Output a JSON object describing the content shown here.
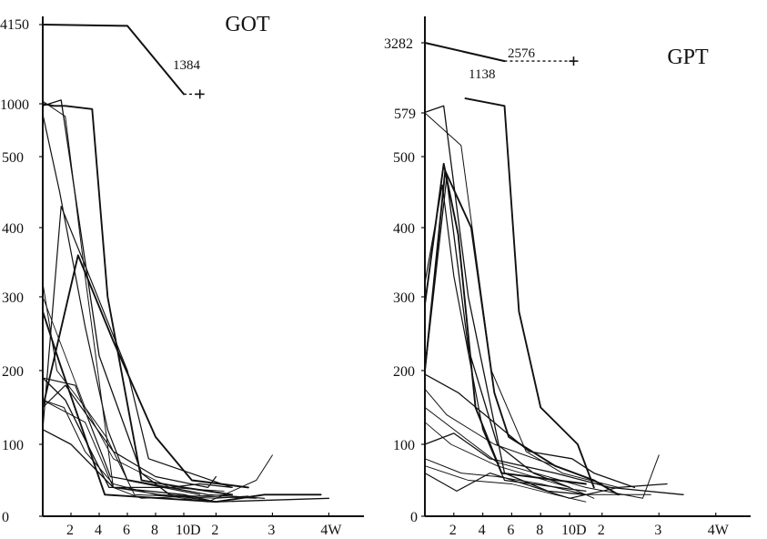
{
  "chart_data": [
    {
      "type": "line",
      "title": "GOT",
      "y_tick_labels": [
        "0",
        "100",
        "200",
        "300",
        "400",
        "500",
        "1000",
        "4150"
      ],
      "x_tick_labels": [
        "2",
        "4",
        "6",
        "8",
        "10D",
        "2",
        "3",
        "4W"
      ],
      "annotations": [
        "1384"
      ],
      "axis_note": "piecewise x-axis: days 0-10 then weeks 1-4; broken y-axis above 500",
      "series": [
        {
          "x": [
            0,
            6,
            10
          ],
          "y": [
            4150,
            4100,
            1384
          ],
          "width": 2.0
        },
        {
          "x": [
            0,
            0.8,
            1.6,
            3.5,
            4.6,
            7,
            10,
            16
          ],
          "y": [
            1000,
            980,
            980,
            950,
            300,
            50,
            40,
            30
          ],
          "width": 1.9
        },
        {
          "x": [
            0,
            1.3,
            4,
            7,
            9,
            14
          ],
          "y": [
            980,
            1150,
            220,
            60,
            30,
            20
          ],
          "width": 1.3
        },
        {
          "x": [
            0,
            1.6,
            3,
            5,
            7,
            16
          ],
          "y": [
            1100,
            880,
            330,
            40,
            25,
            30
          ],
          "width": 1.0
        },
        {
          "x": [
            0,
            1.2,
            3,
            4.6,
            6,
            12
          ],
          "y": [
            900,
            450,
            260,
            120,
            50,
            30
          ],
          "width": 1.2
        },
        {
          "x": [
            0,
            1.3,
            3.3,
            6,
            7.5,
            16
          ],
          "y": [
            120,
            430,
            330,
            200,
            80,
            40
          ],
          "width": 1.2
        },
        {
          "x": [
            0,
            2.5,
            5,
            8,
            11,
            18
          ],
          "y": [
            150,
            360,
            240,
            110,
            50,
            40
          ],
          "width": 1.9
        },
        {
          "x": [
            0,
            1,
            3,
            4.5,
            6.5,
            14,
            18
          ],
          "y": [
            320,
            200,
            150,
            110,
            30,
            25,
            28
          ],
          "width": 1.0
        },
        {
          "x": [
            0,
            1.6,
            4.7,
            9,
            12,
            16
          ],
          "y": [
            190,
            160,
            40,
            40,
            45,
            40
          ],
          "width": 1.3
        },
        {
          "x": [
            0,
            1.5,
            3,
            5,
            8,
            19
          ],
          "y": [
            160,
            150,
            90,
            45,
            30,
            25
          ],
          "width": 1.0
        },
        {
          "x": [
            0,
            1.2,
            4.4,
            14,
            20,
            27
          ],
          "y": [
            280,
            210,
            30,
            20,
            30,
            30
          ],
          "width": 1.9
        },
        {
          "x": [
            0,
            2.3,
            4.8,
            9,
            13,
            20
          ],
          "y": [
            190,
            180,
            55,
            40,
            30,
            25
          ],
          "width": 1.2
        },
        {
          "x": [
            0,
            3,
            5,
            10,
            13,
            19,
            21
          ],
          "y": [
            160,
            130,
            40,
            25,
            20,
            50,
            85
          ],
          "width": 1.0
        },
        {
          "x": [
            0,
            1.6,
            5,
            8,
            13,
            14
          ],
          "y": [
            150,
            180,
            90,
            55,
            40,
            55
          ],
          "width": 1.2
        },
        {
          "x": [
            0,
            2,
            5,
            10,
            14,
            28
          ],
          "y": [
            120,
            100,
            40,
            30,
            20,
            25
          ],
          "width": 1.3
        },
        {
          "x": [
            0,
            1,
            3,
            5,
            9,
            15
          ],
          "y": [
            300,
            250,
            150,
            80,
            40,
            35
          ],
          "width": 0.9
        }
      ],
      "dashed_extension": {
        "x": [
          10,
          12
        ],
        "y": [
          1384,
          1384
        ]
      },
      "cross_marker": {
        "x": 12,
        "y": 1384
      }
    },
    {
      "type": "line",
      "title": "GPT",
      "y_tick_labels": [
        "0",
        "100",
        "200",
        "300",
        "400",
        "500",
        "579",
        "3282"
      ],
      "x_tick_labels": [
        "2",
        "4",
        "6",
        "8",
        "10D",
        "2",
        "3",
        "4W"
      ],
      "annotations": [
        "2576",
        "1138"
      ],
      "axis_note": "piecewise x-axis: days 0-10 then weeks 1-4; broken y-axis above 500",
      "series": [
        {
          "x": [
            0,
            5.5
          ],
          "y": [
            3282,
            2576
          ],
          "width": 2.0
        },
        {
          "x": [
            2.8,
            5.5,
            6.5,
            8,
            11,
            13
          ],
          "y": [
            1138,
            850,
            280,
            150,
            100,
            40
          ],
          "width": 1.9
        },
        {
          "x": [
            0,
            1.3,
            3,
            5.5,
            8.5,
            12
          ],
          "y": [
            600,
            850,
            300,
            60,
            35,
            30
          ],
          "width": 1.3
        },
        {
          "x": [
            0,
            2.5,
            4.6,
            7,
            9.5,
            16
          ],
          "y": [
            579,
            520,
            200,
            90,
            60,
            40
          ],
          "width": 1.0
        },
        {
          "x": [
            0,
            1.3,
            2.3,
            3.5,
            5.3,
            12
          ],
          "y": [
            290,
            490,
            390,
            150,
            60,
            45
          ],
          "width": 1.9
        },
        {
          "x": [
            0,
            1.5,
            3,
            5,
            7.5,
            10
          ],
          "y": [
            200,
            470,
            230,
            100,
            60,
            40
          ],
          "width": 1.3
        },
        {
          "x": [
            0,
            1.2,
            2,
            4,
            5.5,
            12
          ],
          "y": [
            320,
            460,
            330,
            120,
            50,
            35
          ],
          "width": 1.2
        },
        {
          "x": [
            0,
            1.4,
            3.2,
            4.8,
            5.8,
            9,
            13,
            16
          ],
          "y": [
            200,
            480,
            400,
            170,
            110,
            70,
            50,
            30
          ],
          "width": 1.9
        },
        {
          "x": [
            0,
            2.3,
            7.2,
            10.3,
            13,
            18
          ],
          "y": [
            195,
            170,
            90,
            80,
            60,
            40
          ],
          "width": 1.3
        },
        {
          "x": [
            0,
            1.5,
            4.8,
            9,
            14
          ],
          "y": [
            175,
            140,
            100,
            70,
            45
          ],
          "width": 1.0
        },
        {
          "x": [
            0,
            3,
            5,
            12,
            19,
            21
          ],
          "y": [
            150,
            105,
            75,
            40,
            25,
            85
          ],
          "width": 1.0
        },
        {
          "x": [
            0,
            2,
            4.5,
            9,
            15,
            24
          ],
          "y": [
            100,
            115,
            80,
            60,
            40,
            30
          ],
          "width": 1.3
        },
        {
          "x": [
            0,
            2.5,
            5,
            8,
            12,
            20
          ],
          "y": [
            80,
            60,
            55,
            45,
            30,
            30
          ],
          "width": 1.0
        },
        {
          "x": [
            0,
            2.2,
            4.5,
            10,
            16,
            22
          ],
          "y": [
            60,
            35,
            60,
            25,
            40,
            45
          ],
          "width": 1.2
        },
        {
          "x": [
            0,
            1.8,
            5,
            10,
            13
          ],
          "y": [
            130,
            100,
            70,
            40,
            25
          ],
          "width": 0.9
        },
        {
          "x": [
            0,
            3,
            6,
            9,
            12
          ],
          "y": [
            70,
            50,
            45,
            30,
            20
          ],
          "width": 0.9
        }
      ],
      "dashed_extension": {
        "x": [
          5.5,
          10.5
        ],
        "y": [
          2576,
          2576
        ]
      },
      "cross_marker": {
        "x": 10.5,
        "y": 2576
      }
    }
  ]
}
